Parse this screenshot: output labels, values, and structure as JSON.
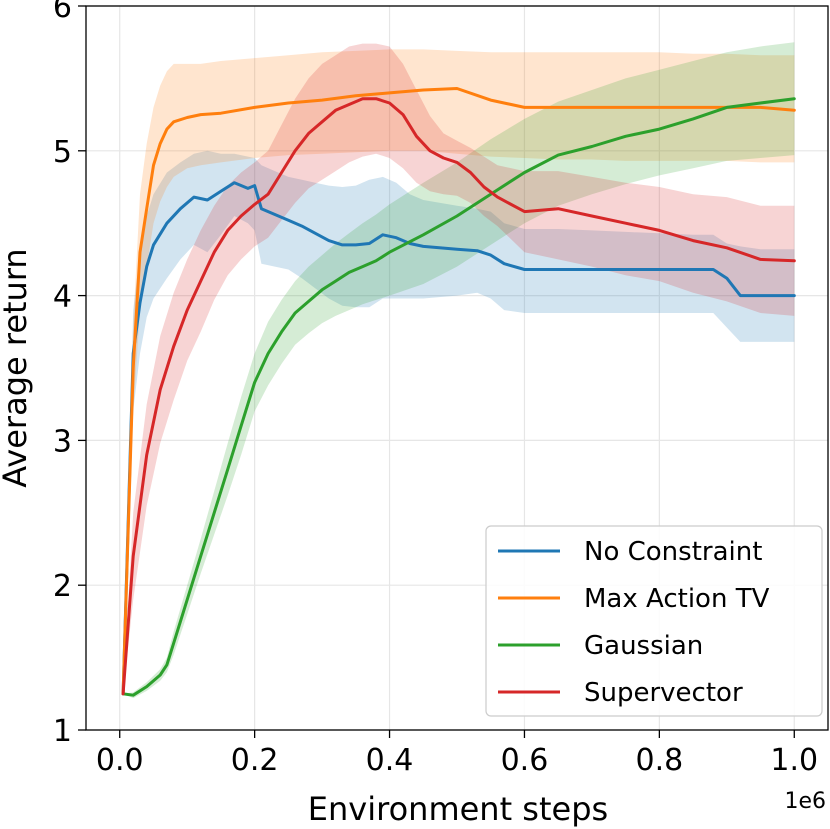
{
  "chart_data": {
    "type": "line",
    "title": "",
    "xlabel": "Environment steps",
    "ylabel": "Average return",
    "x_offset_label": "1e6",
    "xlim": [
      -0.05,
      1.05
    ],
    "ylim": [
      1.0,
      6.0
    ],
    "xticks": [
      0.0,
      0.2,
      0.4,
      0.6,
      0.8,
      1.0
    ],
    "xtick_labels": [
      "0.0",
      "0.2",
      "0.4",
      "0.6",
      "0.8",
      "1.0"
    ],
    "yticks": [
      1,
      2,
      3,
      4,
      5,
      6
    ],
    "ytick_labels": [
      "1",
      "2",
      "3",
      "4",
      "5",
      "6"
    ],
    "grid": true,
    "legend_position": "bottom-right",
    "series": [
      {
        "name": "No Constraint",
        "color": "#1f77b4",
        "x": [
          0.005,
          0.02,
          0.03,
          0.04,
          0.05,
          0.07,
          0.09,
          0.11,
          0.13,
          0.15,
          0.17,
          0.19,
          0.2,
          0.21,
          0.23,
          0.25,
          0.27,
          0.29,
          0.31,
          0.33,
          0.35,
          0.37,
          0.39,
          0.41,
          0.43,
          0.45,
          0.5,
          0.53,
          0.55,
          0.57,
          0.6,
          0.65,
          0.7,
          0.75,
          0.8,
          0.85,
          0.88,
          0.9,
          0.92,
          0.95,
          1.0
        ],
        "values": [
          1.25,
          3.6,
          3.95,
          4.2,
          4.35,
          4.5,
          4.6,
          4.68,
          4.66,
          4.72,
          4.78,
          4.74,
          4.76,
          4.6,
          4.56,
          4.52,
          4.48,
          4.43,
          4.38,
          4.35,
          4.35,
          4.36,
          4.42,
          4.4,
          4.36,
          4.34,
          4.32,
          4.31,
          4.28,
          4.22,
          4.18,
          4.18,
          4.18,
          4.18,
          4.18,
          4.18,
          4.18,
          4.12,
          4.0,
          4.0,
          4.0
        ],
        "upper": [
          1.25,
          3.9,
          4.3,
          4.55,
          4.7,
          4.85,
          4.92,
          4.98,
          5.0,
          4.98,
          4.98,
          4.96,
          4.95,
          4.9,
          4.86,
          4.82,
          4.8,
          4.78,
          4.76,
          4.75,
          4.76,
          4.8,
          4.82,
          4.78,
          4.7,
          4.66,
          4.62,
          4.6,
          4.58,
          4.5,
          4.46,
          4.46,
          4.45,
          4.44,
          4.43,
          4.42,
          4.42,
          4.36,
          4.34,
          4.32,
          4.32
        ],
        "lower": [
          1.25,
          3.2,
          3.6,
          3.85,
          3.98,
          4.12,
          4.25,
          4.35,
          4.3,
          4.42,
          4.55,
          4.5,
          4.45,
          4.22,
          4.2,
          4.18,
          4.12,
          4.05,
          3.98,
          3.93,
          3.92,
          3.92,
          3.98,
          3.98,
          3.98,
          3.98,
          4.0,
          4.02,
          3.98,
          3.9,
          3.88,
          3.88,
          3.88,
          3.88,
          3.88,
          3.88,
          3.88,
          3.78,
          3.68,
          3.68,
          3.68
        ]
      },
      {
        "name": "Max Action TV",
        "color": "#ff7f0e",
        "x": [
          0.005,
          0.02,
          0.03,
          0.04,
          0.05,
          0.06,
          0.07,
          0.08,
          0.1,
          0.12,
          0.15,
          0.2,
          0.25,
          0.3,
          0.35,
          0.4,
          0.45,
          0.5,
          0.55,
          0.6,
          0.65,
          0.7,
          0.75,
          0.8,
          0.85,
          0.9,
          0.95,
          1.0
        ],
        "values": [
          1.25,
          3.5,
          4.3,
          4.6,
          4.9,
          5.05,
          5.15,
          5.2,
          5.23,
          5.25,
          5.26,
          5.3,
          5.33,
          5.35,
          5.38,
          5.4,
          5.42,
          5.43,
          5.35,
          5.3,
          5.3,
          5.3,
          5.3,
          5.3,
          5.3,
          5.3,
          5.3,
          5.28
        ],
        "upper": [
          1.25,
          3.8,
          4.7,
          5.05,
          5.3,
          5.45,
          5.55,
          5.6,
          5.6,
          5.6,
          5.62,
          5.64,
          5.66,
          5.68,
          5.69,
          5.7,
          5.7,
          5.69,
          5.68,
          5.68,
          5.68,
          5.68,
          5.68,
          5.68,
          5.67,
          5.67,
          5.66,
          5.66
        ],
        "lower": [
          1.25,
          3.2,
          3.9,
          4.2,
          4.5,
          4.65,
          4.75,
          4.82,
          4.88,
          4.9,
          4.92,
          4.95,
          4.97,
          4.98,
          4.99,
          5.0,
          5.0,
          4.98,
          4.96,
          4.95,
          4.94,
          4.94,
          4.93,
          4.93,
          4.93,
          4.93,
          4.92,
          4.92
        ]
      },
      {
        "name": "Gaussian",
        "color": "#2ca02c",
        "x": [
          0.005,
          0.02,
          0.04,
          0.06,
          0.07,
          0.08,
          0.1,
          0.12,
          0.14,
          0.16,
          0.18,
          0.2,
          0.22,
          0.24,
          0.26,
          0.28,
          0.3,
          0.32,
          0.34,
          0.36,
          0.38,
          0.4,
          0.45,
          0.5,
          0.55,
          0.6,
          0.65,
          0.7,
          0.75,
          0.8,
          0.85,
          0.9,
          0.95,
          1.0
        ],
        "values": [
          1.25,
          1.24,
          1.3,
          1.38,
          1.45,
          1.6,
          1.9,
          2.2,
          2.5,
          2.8,
          3.1,
          3.4,
          3.6,
          3.75,
          3.88,
          3.96,
          4.04,
          4.1,
          4.16,
          4.2,
          4.24,
          4.3,
          4.42,
          4.55,
          4.7,
          4.85,
          4.97,
          5.03,
          5.1,
          5.15,
          5.22,
          5.3,
          5.33,
          5.36
        ],
        "upper": [
          1.25,
          1.26,
          1.33,
          1.42,
          1.5,
          1.68,
          2.0,
          2.32,
          2.65,
          2.98,
          3.3,
          3.6,
          3.82,
          3.97,
          4.1,
          4.2,
          4.28,
          4.36,
          4.43,
          4.5,
          4.56,
          4.63,
          4.78,
          4.92,
          5.08,
          5.22,
          5.34,
          5.42,
          5.5,
          5.56,
          5.62,
          5.68,
          5.72,
          5.75
        ],
        "lower": [
          1.25,
          1.22,
          1.27,
          1.34,
          1.4,
          1.52,
          1.8,
          2.08,
          2.35,
          2.62,
          2.9,
          3.2,
          3.38,
          3.53,
          3.66,
          3.74,
          3.81,
          3.86,
          3.9,
          3.94,
          3.97,
          4.0,
          4.08,
          4.2,
          4.35,
          4.5,
          4.62,
          4.7,
          4.77,
          4.83,
          4.88,
          4.93,
          4.95,
          4.97
        ]
      },
      {
        "name": "Supervector",
        "color": "#d62728",
        "x": [
          0.005,
          0.02,
          0.04,
          0.06,
          0.08,
          0.1,
          0.12,
          0.14,
          0.16,
          0.18,
          0.2,
          0.22,
          0.24,
          0.26,
          0.28,
          0.3,
          0.32,
          0.34,
          0.36,
          0.38,
          0.4,
          0.42,
          0.44,
          0.46,
          0.48,
          0.5,
          0.52,
          0.54,
          0.56,
          0.6,
          0.65,
          0.7,
          0.75,
          0.8,
          0.85,
          0.9,
          0.95,
          1.0
        ],
        "values": [
          1.25,
          2.2,
          2.9,
          3.35,
          3.65,
          3.9,
          4.1,
          4.3,
          4.45,
          4.55,
          4.63,
          4.7,
          4.85,
          5.0,
          5.12,
          5.2,
          5.28,
          5.32,
          5.36,
          5.36,
          5.33,
          5.25,
          5.1,
          5.0,
          4.95,
          4.92,
          4.85,
          4.75,
          4.68,
          4.58,
          4.6,
          4.55,
          4.5,
          4.45,
          4.38,
          4.33,
          4.25,
          4.24
        ],
        "upper": [
          1.25,
          2.5,
          3.25,
          3.72,
          4.02,
          4.25,
          4.45,
          4.62,
          4.76,
          4.85,
          4.92,
          5.0,
          5.18,
          5.36,
          5.5,
          5.6,
          5.66,
          5.72,
          5.74,
          5.74,
          5.72,
          5.6,
          5.42,
          5.24,
          5.12,
          5.07,
          5.02,
          4.96,
          4.9,
          4.86,
          4.86,
          4.82,
          4.78,
          4.75,
          4.7,
          4.68,
          4.62,
          4.62
        ],
        "lower": [
          1.25,
          1.9,
          2.55,
          2.98,
          3.28,
          3.55,
          3.75,
          3.97,
          4.14,
          4.25,
          4.34,
          4.4,
          4.52,
          4.64,
          4.74,
          4.8,
          4.86,
          4.92,
          4.96,
          4.98,
          4.95,
          4.88,
          4.78,
          4.72,
          4.7,
          4.69,
          4.64,
          4.55,
          4.48,
          4.3,
          4.25,
          4.2,
          4.14,
          4.1,
          4.02,
          3.96,
          3.88,
          3.86
        ]
      }
    ]
  }
}
